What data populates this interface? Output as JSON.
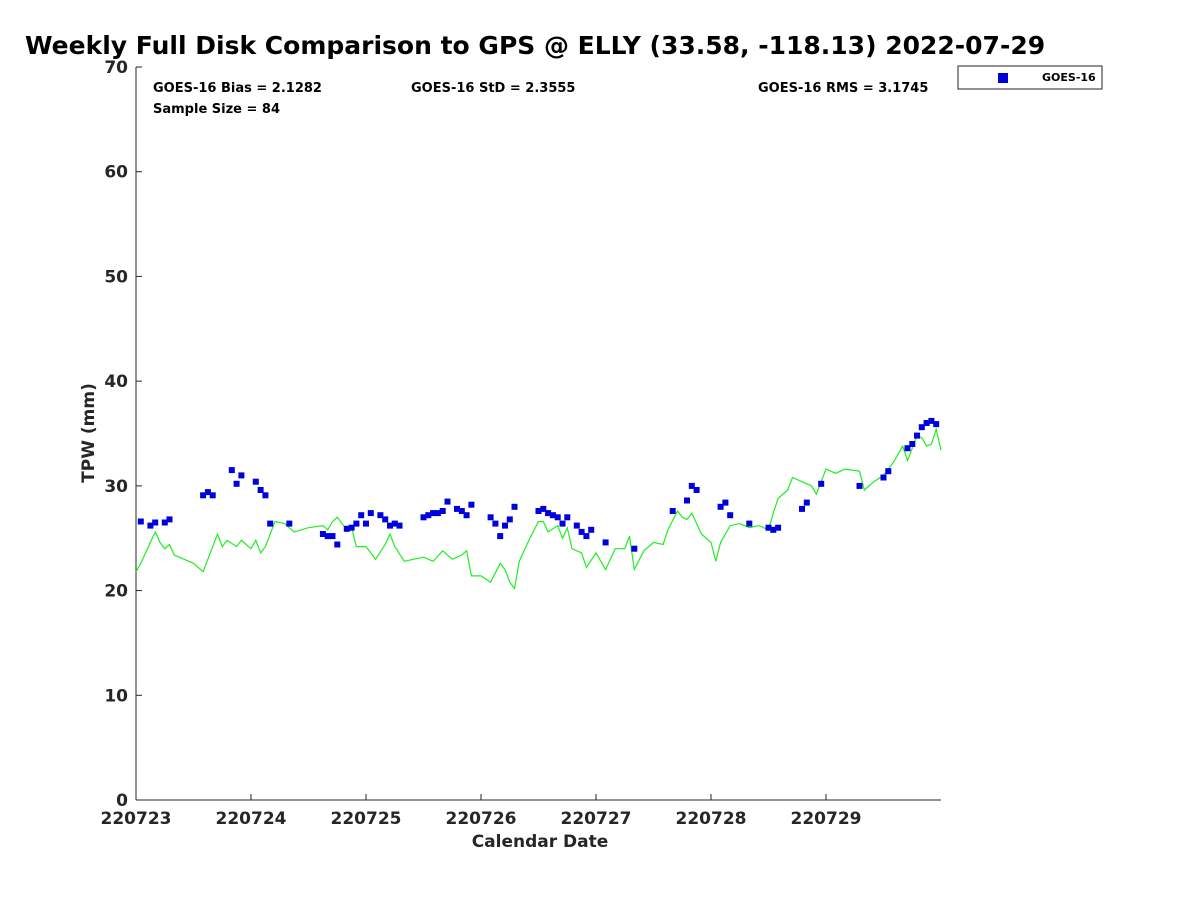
{
  "chart_data": {
    "type": "scatter",
    "title": "Weekly Full Disk Comparison to GPS @ ELLY (33.58, -118.13) 2022-07-29",
    "xlabel": "Calendar Date",
    "ylabel": "TPW (mm)",
    "x_unit": "days",
    "xlim": [
      "220723",
      "220730"
    ],
    "ylim": [
      0,
      70
    ],
    "y_ticks": [
      0,
      10,
      20,
      30,
      40,
      50,
      60,
      70
    ],
    "x_ticks": [
      "220723",
      "220724",
      "220725",
      "220726",
      "220727",
      "220728",
      "220729"
    ],
    "grid": false,
    "legend_position": "top-right",
    "stats": {
      "bias": "GOES-16 Bias = 2.1282",
      "std": "GOES-16 StD = 2.3555",
      "rms": "GOES-16 RMS = 3.1745",
      "sample": "Sample Size = 84"
    },
    "series": [
      {
        "name": "GOES-16",
        "marker": "square",
        "color": "#0000dd",
        "points": [
          [
            "220723 01:00",
            26.6
          ],
          [
            "220723 03:00",
            26.2
          ],
          [
            "220723 04:00",
            26.5
          ],
          [
            "220723 06:00",
            26.5
          ],
          [
            "220723 07:00",
            26.8
          ],
          [
            "220723 14:00",
            29.1
          ],
          [
            "220723 15:00",
            29.4
          ],
          [
            "220723 16:00",
            29.1
          ],
          [
            "220723 20:00",
            31.5
          ],
          [
            "220723 21:00",
            30.2
          ],
          [
            "220723 22:00",
            31.0
          ],
          [
            "220724 01:00",
            30.4
          ],
          [
            "220724 02:00",
            29.6
          ],
          [
            "220724 03:00",
            29.1
          ],
          [
            "220724 04:00",
            26.4
          ],
          [
            "220724 08:00",
            26.4
          ],
          [
            "220724 15:00",
            25.4
          ],
          [
            "220724 16:00",
            25.2
          ],
          [
            "220724 17:00",
            25.2
          ],
          [
            "220724 18:00",
            24.4
          ],
          [
            "220724 20:00",
            25.9
          ],
          [
            "220724 21:00",
            26.0
          ],
          [
            "220724 22:00",
            26.4
          ],
          [
            "220724 23:00",
            27.2
          ],
          [
            "220725 00:00",
            26.4
          ],
          [
            "220725 01:00",
            27.4
          ],
          [
            "220725 03:00",
            27.2
          ],
          [
            "220725 04:00",
            26.8
          ],
          [
            "220725 05:00",
            26.2
          ],
          [
            "220725 06:00",
            26.4
          ],
          [
            "220725 07:00",
            26.2
          ],
          [
            "220725 12:00",
            27.0
          ],
          [
            "220725 13:00",
            27.2
          ],
          [
            "220725 14:00",
            27.4
          ],
          [
            "220725 15:00",
            27.4
          ],
          [
            "220725 16:00",
            27.6
          ],
          [
            "220725 17:00",
            28.5
          ],
          [
            "220725 19:00",
            27.8
          ],
          [
            "220725 20:00",
            27.6
          ],
          [
            "220725 21:00",
            27.2
          ],
          [
            "220725 22:00",
            28.2
          ],
          [
            "220726 02:00",
            27.0
          ],
          [
            "220726 03:00",
            26.4
          ],
          [
            "220726 04:00",
            25.2
          ],
          [
            "220726 05:00",
            26.2
          ],
          [
            "220726 06:00",
            26.8
          ],
          [
            "220726 07:00",
            28.0
          ],
          [
            "220726 12:00",
            27.6
          ],
          [
            "220726 13:00",
            27.8
          ],
          [
            "220726 14:00",
            27.4
          ],
          [
            "220726 15:00",
            27.2
          ],
          [
            "220726 16:00",
            27.0
          ],
          [
            "220726 17:00",
            26.4
          ],
          [
            "220726 18:00",
            27.0
          ],
          [
            "220726 20:00",
            26.2
          ],
          [
            "220726 21:00",
            25.6
          ],
          [
            "220726 22:00",
            25.2
          ],
          [
            "220726 23:00",
            25.8
          ],
          [
            "220727 02:00",
            24.6
          ],
          [
            "220727 08:00",
            24.0
          ],
          [
            "220727 16:00",
            27.6
          ],
          [
            "220727 19:00",
            28.6
          ],
          [
            "220727 20:00",
            30.0
          ],
          [
            "220727 21:00",
            29.6
          ],
          [
            "220728 02:00",
            28.0
          ],
          [
            "220728 03:00",
            28.4
          ],
          [
            "220728 04:00",
            27.2
          ],
          [
            "220728 08:00",
            26.4
          ],
          [
            "220728 12:00",
            26.0
          ],
          [
            "220728 13:00",
            25.8
          ],
          [
            "220728 14:00",
            26.0
          ],
          [
            "220728 19:00",
            27.8
          ],
          [
            "220728 20:00",
            28.4
          ],
          [
            "220728 23:00",
            30.2
          ],
          [
            "220729 07:00",
            30.0
          ],
          [
            "220729 12:00",
            30.8
          ],
          [
            "220729 13:00",
            31.4
          ],
          [
            "220729 17:00",
            33.6
          ],
          [
            "220729 18:00",
            34.0
          ],
          [
            "220729 19:00",
            34.8
          ],
          [
            "220729 20:00",
            35.6
          ],
          [
            "220729 21:00",
            36.0
          ],
          [
            "220729 22:00",
            36.2
          ],
          [
            "220729 23:00",
            35.9
          ]
        ]
      },
      {
        "name": "",
        "type": "line",
        "color": "#22ee22",
        "points": [
          [
            "220723 00:00",
            21.8
          ],
          [
            "220723 01:00",
            22.6
          ],
          [
            "220723 02:00",
            23.6
          ],
          [
            "220723 03:00",
            24.6
          ],
          [
            "220723 04:00",
            25.6
          ],
          [
            "220723 05:00",
            24.6
          ],
          [
            "220723 06:00",
            24.0
          ],
          [
            "220723 07:00",
            24.4
          ],
          [
            "220723 08:00",
            23.4
          ],
          [
            "220723 10:00",
            23.0
          ],
          [
            "220723 12:00",
            22.6
          ],
          [
            "220723 14:00",
            21.8
          ],
          [
            "220723 15:00",
            23.0
          ],
          [
            "220723 17:00",
            25.4
          ],
          [
            "220723 18:00",
            24.2
          ],
          [
            "220723 19:00",
            24.8
          ],
          [
            "220723 21:00",
            24.2
          ],
          [
            "220723 22:00",
            24.8
          ],
          [
            "220724 00:00",
            24.0
          ],
          [
            "220724 01:00",
            24.8
          ],
          [
            "220724 02:00",
            23.6
          ],
          [
            "220724 03:00",
            24.2
          ],
          [
            "220724 05:00",
            26.6
          ],
          [
            "220724 07:00",
            26.4
          ],
          [
            "220724 09:00",
            25.6
          ],
          [
            "220724 12:00",
            26.0
          ],
          [
            "220724 15:00",
            26.2
          ],
          [
            "220724 16:00",
            25.8
          ],
          [
            "220724 17:00",
            26.6
          ],
          [
            "220724 18:00",
            27.0
          ],
          [
            "220724 20:00",
            25.8
          ],
          [
            "220724 21:00",
            26.0
          ],
          [
            "220724 22:00",
            24.2
          ],
          [
            "220725 00:00",
            24.2
          ],
          [
            "220725 02:00",
            23.0
          ],
          [
            "220725 04:00",
            24.4
          ],
          [
            "220725 05:00",
            25.4
          ],
          [
            "220725 06:00",
            24.2
          ],
          [
            "220725 08:00",
            22.8
          ],
          [
            "220725 10:00",
            23.0
          ],
          [
            "220725 12:00",
            23.2
          ],
          [
            "220725 14:00",
            22.8
          ],
          [
            "220725 16:00",
            23.8
          ],
          [
            "220725 18:00",
            23.0
          ],
          [
            "220725 20:00",
            23.4
          ],
          [
            "220725 21:00",
            23.8
          ],
          [
            "220725 22:00",
            21.4
          ],
          [
            "220726 00:00",
            21.4
          ],
          [
            "220726 02:00",
            20.8
          ],
          [
            "220726 04:00",
            22.6
          ],
          [
            "220726 05:00",
            22.0
          ],
          [
            "220726 06:00",
            20.8
          ],
          [
            "220726 07:00",
            20.2
          ],
          [
            "220726 08:00",
            22.8
          ],
          [
            "220726 10:00",
            24.8
          ],
          [
            "220726 12:00",
            26.6
          ],
          [
            "220726 13:00",
            26.6
          ],
          [
            "220726 14:00",
            25.6
          ],
          [
            "220726 16:00",
            26.2
          ],
          [
            "220726 17:00",
            25.0
          ],
          [
            "220726 18:00",
            26.0
          ],
          [
            "220726 19:00",
            24.0
          ],
          [
            "220726 21:00",
            23.6
          ],
          [
            "220726 22:00",
            22.2
          ],
          [
            "220727 00:00",
            23.6
          ],
          [
            "220727 02:00",
            22.0
          ],
          [
            "220727 04:00",
            24.0
          ],
          [
            "220727 06:00",
            24.0
          ],
          [
            "220727 07:00",
            25.2
          ],
          [
            "220727 08:00",
            22.0
          ],
          [
            "220727 10:00",
            23.8
          ],
          [
            "220727 12:00",
            24.6
          ],
          [
            "220727 14:00",
            24.4
          ],
          [
            "220727 15:00",
            25.8
          ],
          [
            "220727 17:00",
            27.6
          ],
          [
            "220727 18:00",
            27.0
          ],
          [
            "220727 19:00",
            26.8
          ],
          [
            "220727 20:00",
            27.4
          ],
          [
            "220727 22:00",
            25.4
          ],
          [
            "220728 00:00",
            24.6
          ],
          [
            "220728 01:00",
            22.8
          ],
          [
            "220728 02:00",
            24.6
          ],
          [
            "220728 04:00",
            26.2
          ],
          [
            "220728 06:00",
            26.4
          ],
          [
            "220728 08:00",
            26.0
          ],
          [
            "220728 10:00",
            26.2
          ],
          [
            "220728 12:00",
            25.8
          ],
          [
            "220728 13:00",
            27.4
          ],
          [
            "220728 14:00",
            28.8
          ],
          [
            "220728 16:00",
            29.6
          ],
          [
            "220728 17:00",
            30.8
          ],
          [
            "220728 19:00",
            30.4
          ],
          [
            "220728 21:00",
            30.0
          ],
          [
            "220728 22:00",
            29.2
          ],
          [
            "220729 00:00",
            31.6
          ],
          [
            "220729 02:00",
            31.2
          ],
          [
            "220729 04:00",
            31.6
          ],
          [
            "220729 07:00",
            31.4
          ],
          [
            "220729 08:00",
            29.6
          ],
          [
            "220729 10:00",
            30.4
          ],
          [
            "220729 12:00",
            31.0
          ],
          [
            "220729 14:00",
            32.2
          ],
          [
            "220729 16:00",
            33.8
          ],
          [
            "220729 17:00",
            32.4
          ],
          [
            "220729 18:00",
            33.6
          ],
          [
            "220729 19:00",
            34.8
          ],
          [
            "220729 20:00",
            34.6
          ],
          [
            "220729 21:00",
            33.8
          ],
          [
            "220729 22:00",
            34.0
          ],
          [
            "220729 23:00",
            35.4
          ],
          [
            "220730 00:00",
            33.4
          ]
        ]
      }
    ]
  }
}
